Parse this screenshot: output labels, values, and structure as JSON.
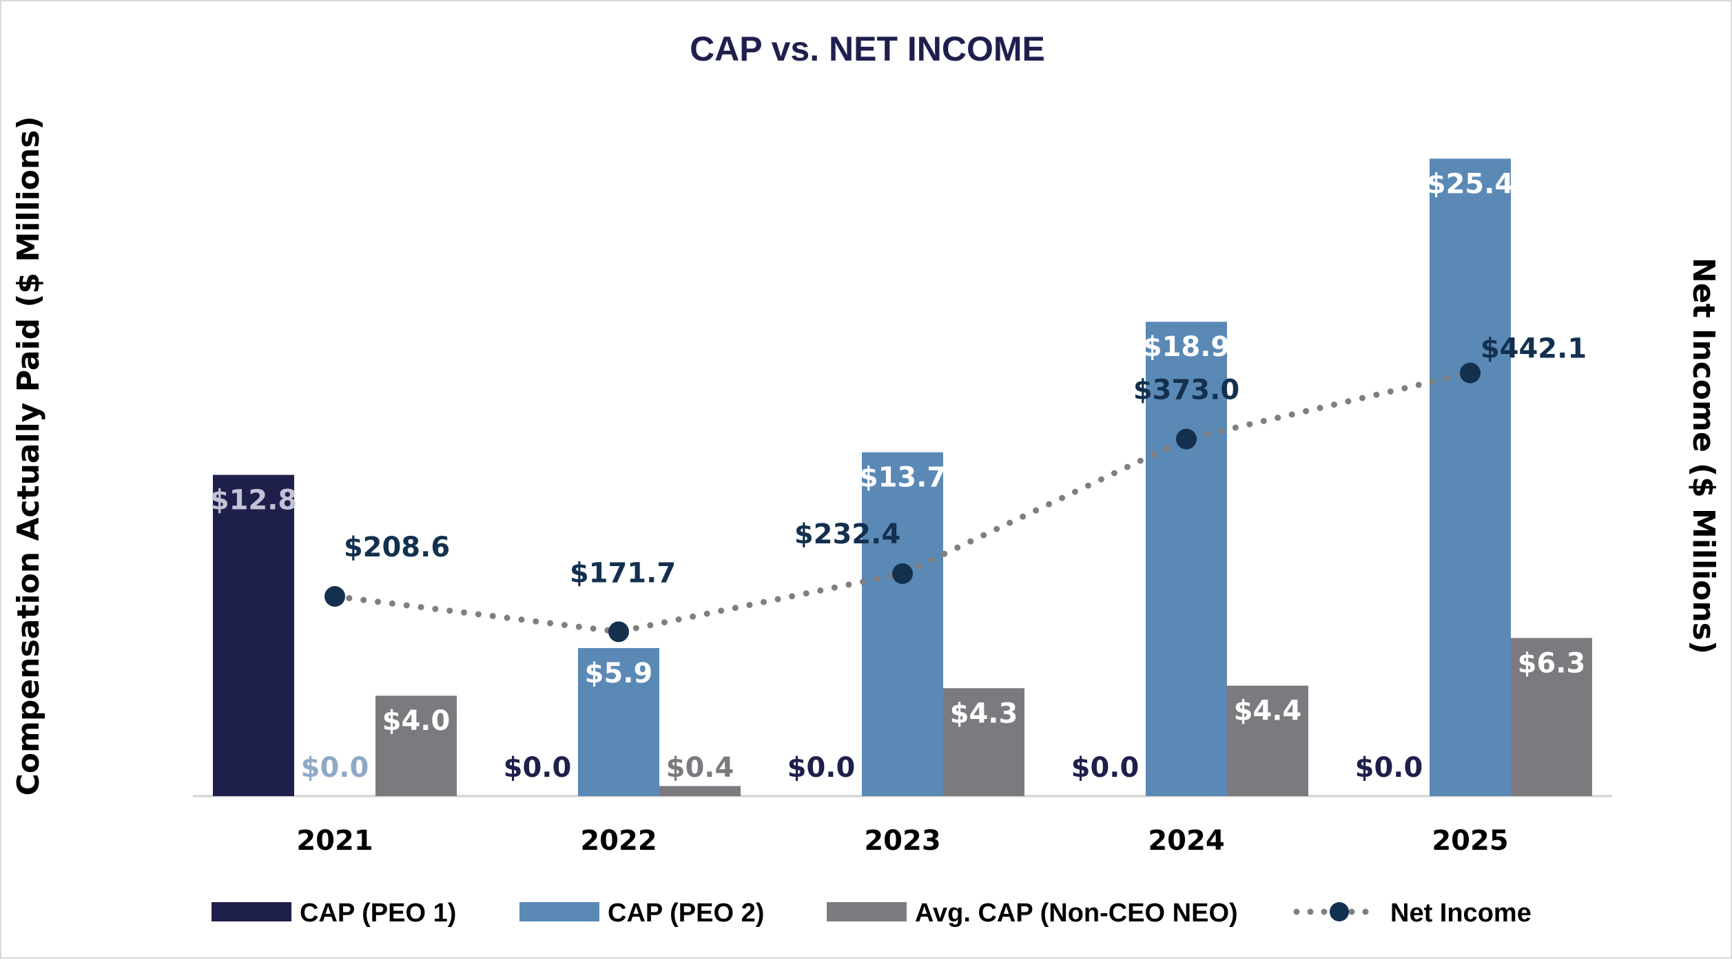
{
  "chart_data": {
    "type": "bar",
    "title": "CAP vs. NET INCOME",
    "ylabel": "Compensation Actually Paid ($ Millions)",
    "y2label": "Net Income ($ Millions)",
    "xlabel": "",
    "categories": [
      "2021",
      "2022",
      "2023",
      "2024",
      "2025"
    ],
    "ylim": [
      0,
      26.7
    ],
    "y2lim": [
      0,
      700
    ],
    "grid": false,
    "legend_position": "bottom",
    "series": [
      {
        "name": "CAP (PEO 1)",
        "type": "bar",
        "color": "#1f1f4c",
        "label_color_on_bar": "#c2c3d6",
        "label_color_above": "#1f1f4c",
        "values": [
          12.8,
          0.0,
          0.0,
          0.0,
          0.0
        ],
        "labels": [
          "$12.8",
          "$0.0",
          "$0.0",
          "$0.0",
          "$0.0"
        ]
      },
      {
        "name": "CAP (PEO 2)",
        "type": "bar",
        "color": "#5b89b6",
        "label_color_on_bar": "#ffffff",
        "label_color_above": "#8fa8c8",
        "values": [
          0.0,
          5.9,
          13.7,
          18.9,
          25.4
        ],
        "labels": [
          "$0.0",
          "$5.9",
          "$13.7",
          "$18.9",
          "$25.4"
        ]
      },
      {
        "name": "Avg. CAP (Non-CEO NEO)",
        "type": "bar",
        "color": "#7a7a7f",
        "label_color_on_bar": "#ffffff",
        "label_color_above": "#7a7a7f",
        "values": [
          4.0,
          0.4,
          4.3,
          4.4,
          6.3
        ],
        "labels": [
          "$4.0",
          "$0.4",
          "$4.3",
          "$4.4",
          "$6.3"
        ]
      },
      {
        "name": "Net Income",
        "type": "line",
        "axis": "right",
        "color": "#13304f",
        "line_color": "#7f7f7f",
        "line_style": "dotted",
        "values": [
          208.6,
          171.7,
          232.4,
          373.0,
          442.1
        ],
        "labels": [
          "$208.6",
          "$171.7",
          "$232.4",
          "$373.0",
          "$442.1"
        ]
      }
    ]
  }
}
